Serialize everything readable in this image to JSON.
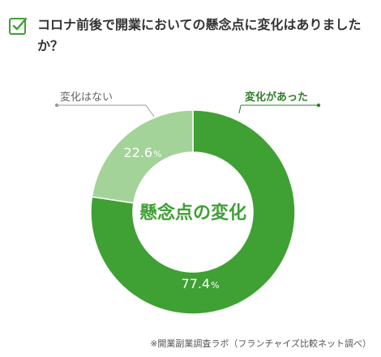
{
  "question": "コロナ前後で開業においての懸念点に変化はありましたか？",
  "chart_data": {
    "type": "pie",
    "title": "懸念点の変化",
    "slices": [
      {
        "label": "変化があった",
        "value": 77.4,
        "value_label": "77.4",
        "color": "#3fa034"
      },
      {
        "label": "変化はない",
        "value": 22.6,
        "value_label": "22.6",
        "color": "#a3d398"
      }
    ],
    "unit": "%",
    "legend_colors": {
      "label_changed": "#2f7e2a",
      "label_unchanged": "#666666",
      "line_unchanged": "#9a9a9a"
    }
  },
  "footnote": "※開業副業調査ラボ（フランチャイズ比較ネット調べ）"
}
